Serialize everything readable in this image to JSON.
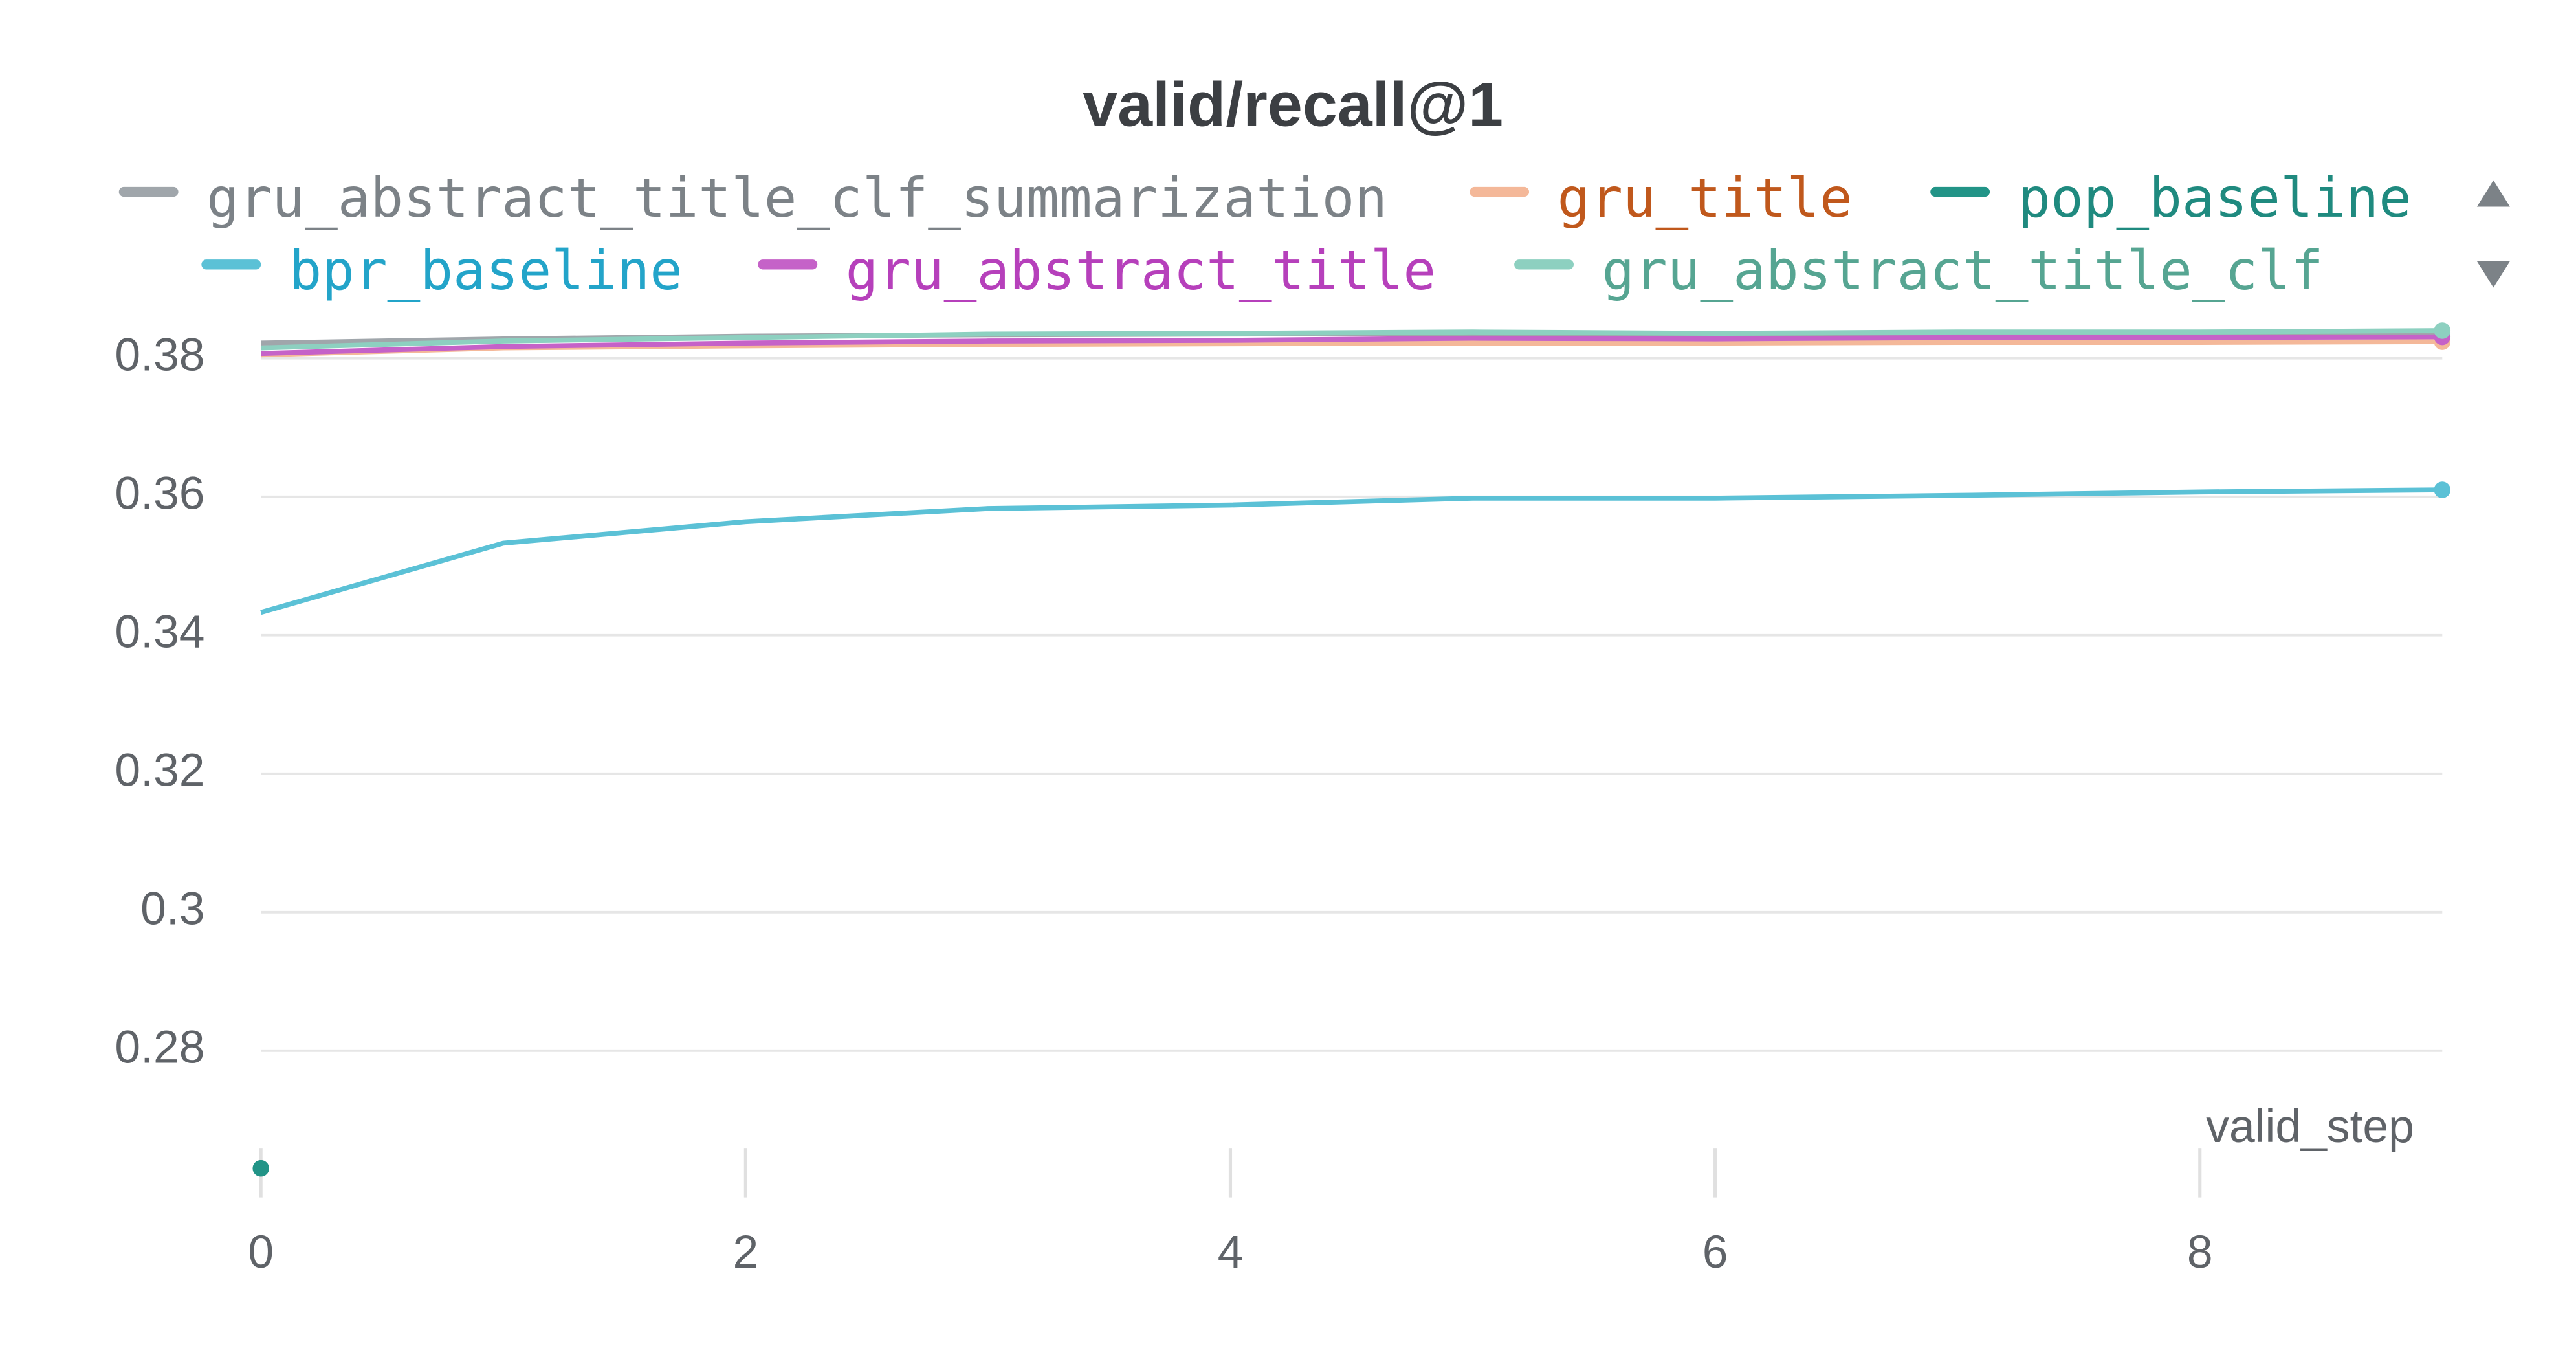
{
  "chart_data": {
    "type": "line",
    "title": "valid/recall@1",
    "xlabel": "valid_step",
    "x": [
      0,
      1,
      2,
      3,
      4,
      5,
      6,
      7,
      8,
      9
    ],
    "xlim": [
      0,
      9
    ],
    "xticks": [
      0,
      2,
      4,
      6,
      8
    ],
    "ylim": [
      0.2588,
      0.3852
    ],
    "yticks": [
      0.28,
      0.3,
      0.32,
      0.34,
      0.36,
      0.38
    ],
    "grid": true,
    "series": [
      {
        "name": "gru_abstract_title_clf_summarization",
        "color": "#a0a6ab",
        "legend_text_color": "#7c8287",
        "values": [
          0.3822,
          0.3828,
          0.3832,
          0.3834,
          0.3835,
          0.3836,
          0.3835,
          0.3836,
          0.3837,
          0.3837
        ]
      },
      {
        "name": "gru_title",
        "color": "#f4b899",
        "legend_text_color": "#c0581c",
        "values": [
          0.3805,
          0.3815,
          0.3818,
          0.382,
          0.3821,
          0.3822,
          0.3822,
          0.3823,
          0.3823,
          0.3824
        ]
      },
      {
        "name": "pop_baseline",
        "color": "#229487",
        "legend_text_color": "#1f8a7f",
        "values": [
          0.263,
          null,
          null,
          null,
          null,
          null,
          null,
          null,
          null,
          null
        ]
      },
      {
        "name": "bpr_baseline",
        "color": "#5bc1d6",
        "legend_text_color": "#23a4c9",
        "values": [
          0.3433,
          0.3533,
          0.3564,
          0.3583,
          0.3588,
          0.3598,
          0.3598,
          0.3602,
          0.3607,
          0.361
        ]
      },
      {
        "name": "gru_abstract_title",
        "color": "#c562c8",
        "legend_text_color": "#b640bb",
        "values": [
          0.3807,
          0.3817,
          0.3822,
          0.3825,
          0.3826,
          0.3829,
          0.3828,
          0.383,
          0.383,
          0.3831
        ]
      },
      {
        "name": "gru_abstract_title_clf",
        "color": "#8dd0c0",
        "legend_text_color": "#56a592",
        "values": [
          0.3815,
          0.3825,
          0.383,
          0.3835,
          0.3836,
          0.3838,
          0.3836,
          0.3838,
          0.3838,
          0.384
        ]
      }
    ]
  }
}
